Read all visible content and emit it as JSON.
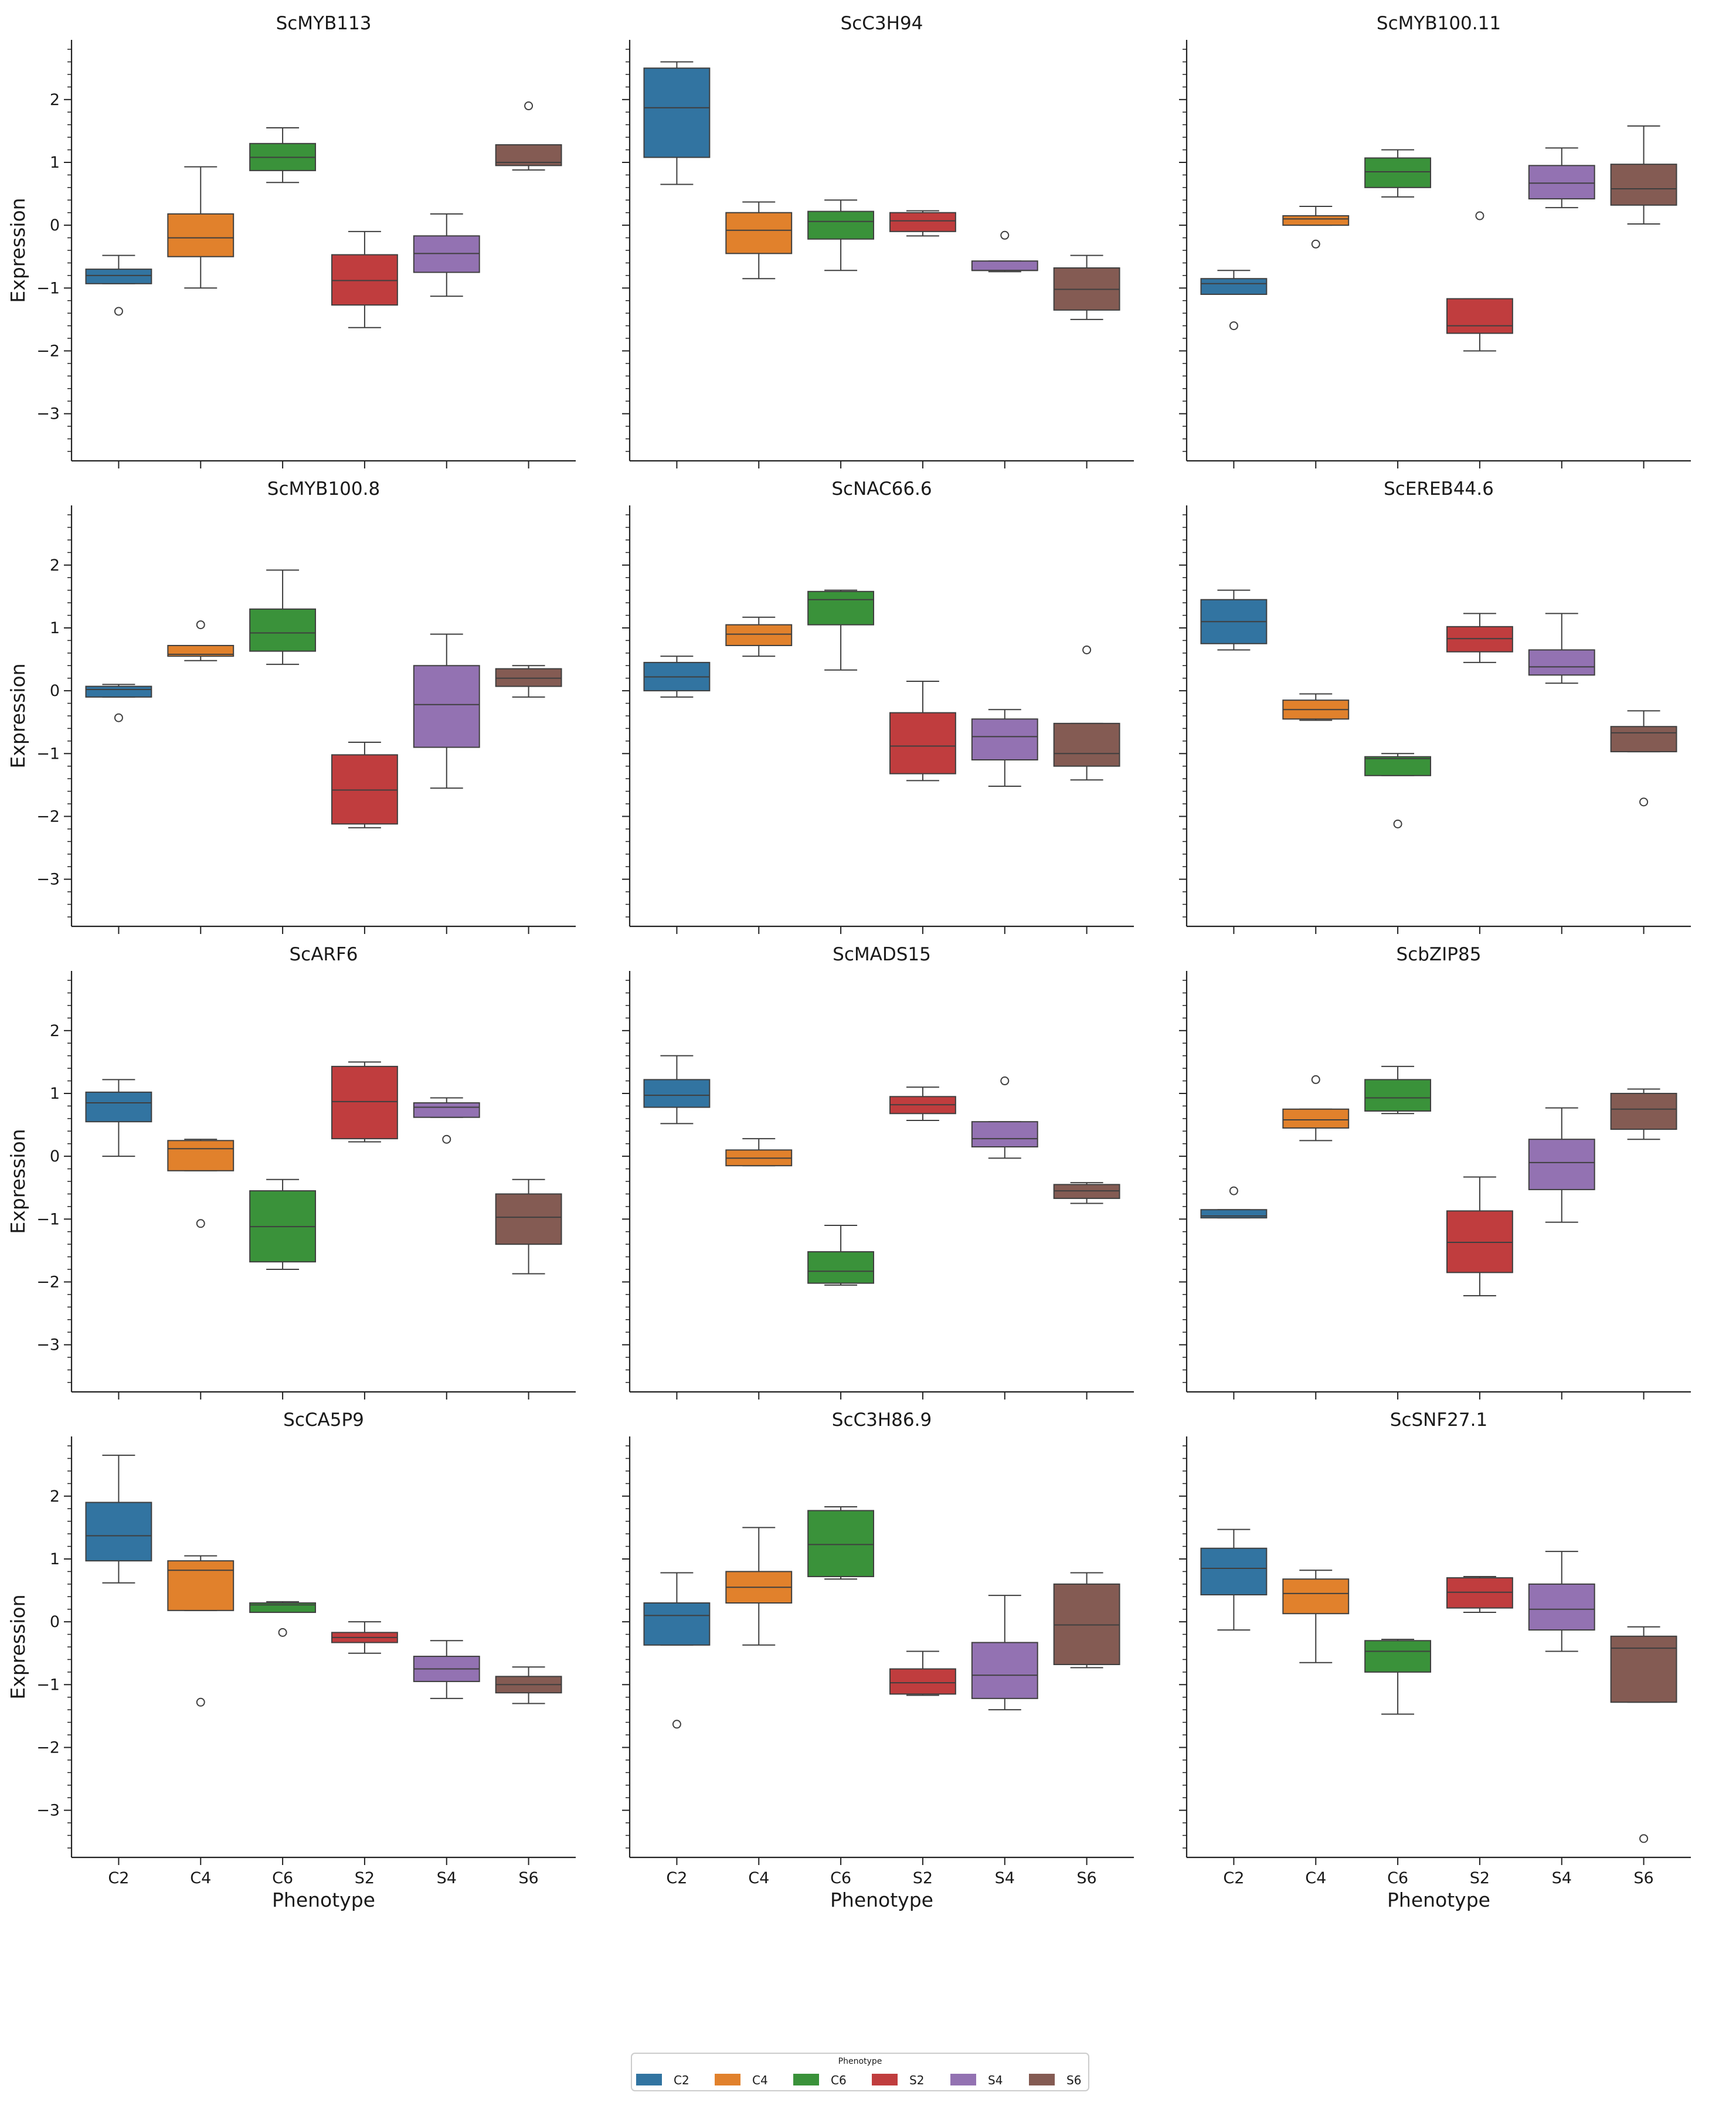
{
  "figure": {
    "ylabel": "Expression",
    "xlabel": "Phenotype",
    "legend": {
      "title": "Phenotype",
      "placement": "bottom-center",
      "entries": [
        "C2",
        "C4",
        "C6",
        "S2",
        "S4",
        "S6"
      ]
    }
  },
  "chart_data": {
    "type": "box",
    "layout": {
      "rows": 4,
      "cols": 3,
      "sharex": true,
      "sharey": true
    },
    "categories": [
      "C2",
      "C4",
      "C6",
      "S2",
      "S4",
      "S6"
    ],
    "category_colors": [
      "#3274a1",
      "#e1812c",
      "#3a923a",
      "#c03d3e",
      "#9372b2",
      "#845b53"
    ],
    "ylim": [
      -3.75,
      2.95
    ],
    "yticks": [
      -3,
      -2,
      -1,
      0,
      1,
      2
    ],
    "panels": [
      {
        "title": "ScMYB113",
        "boxes": [
          {
            "whislo": -0.93,
            "q1": -0.93,
            "med": -0.8,
            "q3": -0.7,
            "whishi": -0.48,
            "fliers": [
              -1.37
            ]
          },
          {
            "whislo": -1.0,
            "q1": -0.5,
            "med": -0.2,
            "q3": 0.18,
            "whishi": 0.93,
            "fliers": []
          },
          {
            "whislo": 0.68,
            "q1": 0.87,
            "med": 1.08,
            "q3": 1.3,
            "whishi": 1.55,
            "fliers": []
          },
          {
            "whislo": -1.63,
            "q1": -1.27,
            "med": -0.88,
            "q3": -0.47,
            "whishi": -0.1,
            "fliers": []
          },
          {
            "whislo": -1.13,
            "q1": -0.75,
            "med": -0.45,
            "q3": -0.17,
            "whishi": 0.18,
            "fliers": []
          },
          {
            "whislo": 0.88,
            "q1": 0.95,
            "med": 1.0,
            "q3": 1.28,
            "whishi": 1.28,
            "fliers": [
              1.9
            ]
          }
        ]
      },
      {
        "title": "ScC3H94",
        "boxes": [
          {
            "whislo": 0.65,
            "q1": 1.08,
            "med": 1.87,
            "q3": 2.5,
            "whishi": 2.6,
            "fliers": []
          },
          {
            "whislo": -0.85,
            "q1": -0.45,
            "med": -0.08,
            "q3": 0.2,
            "whishi": 0.37,
            "fliers": []
          },
          {
            "whislo": -0.72,
            "q1": -0.22,
            "med": 0.06,
            "q3": 0.22,
            "whishi": 0.4,
            "fliers": []
          },
          {
            "whislo": -0.17,
            "q1": -0.1,
            "med": 0.07,
            "q3": 0.2,
            "whishi": 0.23,
            "fliers": []
          },
          {
            "whislo": -0.74,
            "q1": -0.72,
            "med": -0.72,
            "q3": -0.57,
            "whishi": -0.57,
            "fliers": [
              -0.16
            ]
          },
          {
            "whislo": -1.5,
            "q1": -1.35,
            "med": -1.02,
            "q3": -0.68,
            "whishi": -0.48,
            "fliers": []
          }
        ]
      },
      {
        "title": "ScMYB100.11",
        "boxes": [
          {
            "whislo": -1.1,
            "q1": -1.1,
            "med": -0.93,
            "q3": -0.85,
            "whishi": -0.72,
            "fliers": [
              -1.6
            ]
          },
          {
            "whislo": 0.0,
            "q1": 0.0,
            "med": 0.1,
            "q3": 0.15,
            "whishi": 0.3,
            "fliers": [
              -0.3
            ]
          },
          {
            "whislo": 0.45,
            "q1": 0.6,
            "med": 0.85,
            "q3": 1.07,
            "whishi": 1.2,
            "fliers": []
          },
          {
            "whislo": -2.0,
            "q1": -1.72,
            "med": -1.6,
            "q3": -1.17,
            "whishi": -1.17,
            "fliers": [
              0.15
            ]
          },
          {
            "whislo": 0.28,
            "q1": 0.42,
            "med": 0.67,
            "q3": 0.95,
            "whishi": 1.23,
            "fliers": []
          },
          {
            "whislo": 0.02,
            "q1": 0.32,
            "med": 0.58,
            "q3": 0.97,
            "whishi": 1.58,
            "fliers": []
          }
        ]
      },
      {
        "title": "ScMYB100.8",
        "boxes": [
          {
            "whislo": -0.1,
            "q1": -0.1,
            "med": 0.02,
            "q3": 0.07,
            "whishi": 0.1,
            "fliers": [
              -0.43
            ]
          },
          {
            "whislo": 0.48,
            "q1": 0.55,
            "med": 0.58,
            "q3": 0.72,
            "whishi": 0.72,
            "fliers": [
              1.05
            ]
          },
          {
            "whislo": 0.42,
            "q1": 0.63,
            "med": 0.92,
            "q3": 1.3,
            "whishi": 1.92,
            "fliers": []
          },
          {
            "whislo": -2.18,
            "q1": -2.12,
            "med": -1.58,
            "q3": -1.02,
            "whishi": -0.82,
            "fliers": []
          },
          {
            "whislo": -1.55,
            "q1": -0.9,
            "med": -0.22,
            "q3": 0.4,
            "whishi": 0.9,
            "fliers": []
          },
          {
            "whislo": -0.1,
            "q1": 0.07,
            "med": 0.2,
            "q3": 0.35,
            "whishi": 0.4,
            "fliers": []
          }
        ]
      },
      {
        "title": "ScNAC66.6",
        "boxes": [
          {
            "whislo": -0.1,
            "q1": 0.0,
            "med": 0.22,
            "q3": 0.45,
            "whishi": 0.55,
            "fliers": []
          },
          {
            "whislo": 0.55,
            "q1": 0.72,
            "med": 0.9,
            "q3": 1.05,
            "whishi": 1.17,
            "fliers": []
          },
          {
            "whislo": 0.33,
            "q1": 1.05,
            "med": 1.45,
            "q3": 1.58,
            "whishi": 1.6,
            "fliers": []
          },
          {
            "whislo": -1.43,
            "q1": -1.32,
            "med": -0.88,
            "q3": -0.35,
            "whishi": 0.15,
            "fliers": []
          },
          {
            "whislo": -1.52,
            "q1": -1.1,
            "med": -0.73,
            "q3": -0.45,
            "whishi": -0.3,
            "fliers": []
          },
          {
            "whislo": -1.42,
            "q1": -1.2,
            "med": -1.0,
            "q3": -0.52,
            "whishi": -0.52,
            "fliers": [
              0.65
            ]
          }
        ]
      },
      {
        "title": "ScEREB44.6",
        "boxes": [
          {
            "whislo": 0.65,
            "q1": 0.75,
            "med": 1.1,
            "q3": 1.45,
            "whishi": 1.6,
            "fliers": []
          },
          {
            "whislo": -0.47,
            "q1": -0.45,
            "med": -0.3,
            "q3": -0.15,
            "whishi": -0.05,
            "fliers": []
          },
          {
            "whislo": -1.35,
            "q1": -1.35,
            "med": -1.08,
            "q3": -1.05,
            "whishi": -1.0,
            "fliers": [
              -2.12
            ]
          },
          {
            "whislo": 0.45,
            "q1": 0.62,
            "med": 0.83,
            "q3": 1.02,
            "whishi": 1.23,
            "fliers": []
          },
          {
            "whislo": 0.12,
            "q1": 0.25,
            "med": 0.38,
            "q3": 0.65,
            "whishi": 1.23,
            "fliers": []
          },
          {
            "whislo": -0.97,
            "q1": -0.97,
            "med": -0.67,
            "q3": -0.57,
            "whishi": -0.32,
            "fliers": [
              -1.77
            ]
          }
        ]
      },
      {
        "title": "ScARF6",
        "boxes": [
          {
            "whislo": 0.0,
            "q1": 0.55,
            "med": 0.85,
            "q3": 1.02,
            "whishi": 1.22,
            "fliers": []
          },
          {
            "whislo": -0.23,
            "q1": -0.23,
            "med": 0.12,
            "q3": 0.25,
            "whishi": 0.27,
            "fliers": [
              -1.07
            ]
          },
          {
            "whislo": -1.8,
            "q1": -1.68,
            "med": -1.12,
            "q3": -0.55,
            "whishi": -0.37,
            "fliers": []
          },
          {
            "whislo": 0.23,
            "q1": 0.28,
            "med": 0.87,
            "q3": 1.43,
            "whishi": 1.5,
            "fliers": []
          },
          {
            "whislo": 0.62,
            "q1": 0.62,
            "med": 0.78,
            "q3": 0.85,
            "whishi": 0.93,
            "fliers": [
              0.27
            ]
          },
          {
            "whislo": -1.87,
            "q1": -1.4,
            "med": -0.97,
            "q3": -0.6,
            "whishi": -0.37,
            "fliers": []
          }
        ]
      },
      {
        "title": "ScMADS15",
        "boxes": [
          {
            "whislo": 0.52,
            "q1": 0.78,
            "med": 0.97,
            "q3": 1.22,
            "whishi": 1.6,
            "fliers": []
          },
          {
            "whislo": -0.15,
            "q1": -0.15,
            "med": -0.03,
            "q3": 0.1,
            "whishi": 0.28,
            "fliers": []
          },
          {
            "whislo": -2.05,
            "q1": -2.02,
            "med": -1.83,
            "q3": -1.52,
            "whishi": -1.1,
            "fliers": []
          },
          {
            "whislo": 0.57,
            "q1": 0.68,
            "med": 0.82,
            "q3": 0.95,
            "whishi": 1.1,
            "fliers": []
          },
          {
            "whislo": -0.03,
            "q1": 0.15,
            "med": 0.28,
            "q3": 0.55,
            "whishi": 0.55,
            "fliers": [
              1.2
            ]
          },
          {
            "whislo": -0.75,
            "q1": -0.67,
            "med": -0.55,
            "q3": -0.45,
            "whishi": -0.42,
            "fliers": []
          }
        ]
      },
      {
        "title": "ScbZIP85",
        "boxes": [
          {
            "whislo": -0.98,
            "q1": -0.98,
            "med": -0.95,
            "q3": -0.85,
            "whishi": -0.85,
            "fliers": [
              -0.55
            ]
          },
          {
            "whislo": 0.25,
            "q1": 0.45,
            "med": 0.58,
            "q3": 0.75,
            "whishi": 0.75,
            "fliers": [
              1.22
            ]
          },
          {
            "whislo": 0.68,
            "q1": 0.72,
            "med": 0.93,
            "q3": 1.22,
            "whishi": 1.43,
            "fliers": []
          },
          {
            "whislo": -2.22,
            "q1": -1.85,
            "med": -1.37,
            "q3": -0.87,
            "whishi": -0.33,
            "fliers": []
          },
          {
            "whislo": -1.05,
            "q1": -0.53,
            "med": -0.1,
            "q3": 0.27,
            "whishi": 0.77,
            "fliers": []
          },
          {
            "whislo": 0.27,
            "q1": 0.43,
            "med": 0.75,
            "q3": 1.0,
            "whishi": 1.07,
            "fliers": []
          }
        ]
      },
      {
        "title": "ScCA5P9",
        "boxes": [
          {
            "whislo": 0.62,
            "q1": 0.97,
            "med": 1.37,
            "q3": 1.9,
            "whishi": 2.65,
            "fliers": []
          },
          {
            "whislo": 0.18,
            "q1": 0.18,
            "med": 0.82,
            "q3": 0.97,
            "whishi": 1.05,
            "fliers": [
              -1.28
            ]
          },
          {
            "whislo": 0.15,
            "q1": 0.15,
            "med": 0.27,
            "q3": 0.3,
            "whishi": 0.32,
            "fliers": [
              -0.17
            ]
          },
          {
            "whislo": -0.5,
            "q1": -0.33,
            "med": -0.25,
            "q3": -0.17,
            "whishi": 0.0,
            "fliers": []
          },
          {
            "whislo": -1.22,
            "q1": -0.95,
            "med": -0.75,
            "q3": -0.55,
            "whishi": -0.3,
            "fliers": []
          },
          {
            "whislo": -1.3,
            "q1": -1.13,
            "med": -1.0,
            "q3": -0.87,
            "whishi": -0.72,
            "fliers": []
          }
        ]
      },
      {
        "title": "ScC3H86.9",
        "boxes": [
          {
            "whislo": -0.37,
            "q1": -0.37,
            "med": 0.1,
            "q3": 0.3,
            "whishi": 0.78,
            "fliers": [
              -1.63
            ]
          },
          {
            "whislo": -0.37,
            "q1": 0.3,
            "med": 0.55,
            "q3": 0.8,
            "whishi": 1.5,
            "fliers": []
          },
          {
            "whislo": 0.68,
            "q1": 0.72,
            "med": 1.23,
            "q3": 1.77,
            "whishi": 1.83,
            "fliers": []
          },
          {
            "whislo": -1.17,
            "q1": -1.15,
            "med": -0.97,
            "q3": -0.75,
            "whishi": -0.47,
            "fliers": []
          },
          {
            "whislo": -1.4,
            "q1": -1.22,
            "med": -0.85,
            "q3": -0.33,
            "whishi": 0.42,
            "fliers": []
          },
          {
            "whislo": -0.73,
            "q1": -0.68,
            "med": -0.05,
            "q3": 0.6,
            "whishi": 0.78,
            "fliers": []
          }
        ]
      },
      {
        "title": "ScSNF27.1",
        "boxes": [
          {
            "whislo": -0.13,
            "q1": 0.43,
            "med": 0.85,
            "q3": 1.17,
            "whishi": 1.47,
            "fliers": []
          },
          {
            "whislo": -0.65,
            "q1": 0.13,
            "med": 0.45,
            "q3": 0.68,
            "whishi": 0.82,
            "fliers": []
          },
          {
            "whislo": -1.47,
            "q1": -0.8,
            "med": -0.47,
            "q3": -0.3,
            "whishi": -0.28,
            "fliers": []
          },
          {
            "whislo": 0.15,
            "q1": 0.22,
            "med": 0.47,
            "q3": 0.7,
            "whishi": 0.72,
            "fliers": []
          },
          {
            "whislo": -0.47,
            "q1": -0.13,
            "med": 0.2,
            "q3": 0.6,
            "whishi": 1.12,
            "fliers": []
          },
          {
            "whislo": -1.28,
            "q1": -1.28,
            "med": -0.42,
            "q3": -0.23,
            "whishi": -0.08,
            "fliers": [
              -3.45
            ]
          }
        ]
      }
    ]
  }
}
